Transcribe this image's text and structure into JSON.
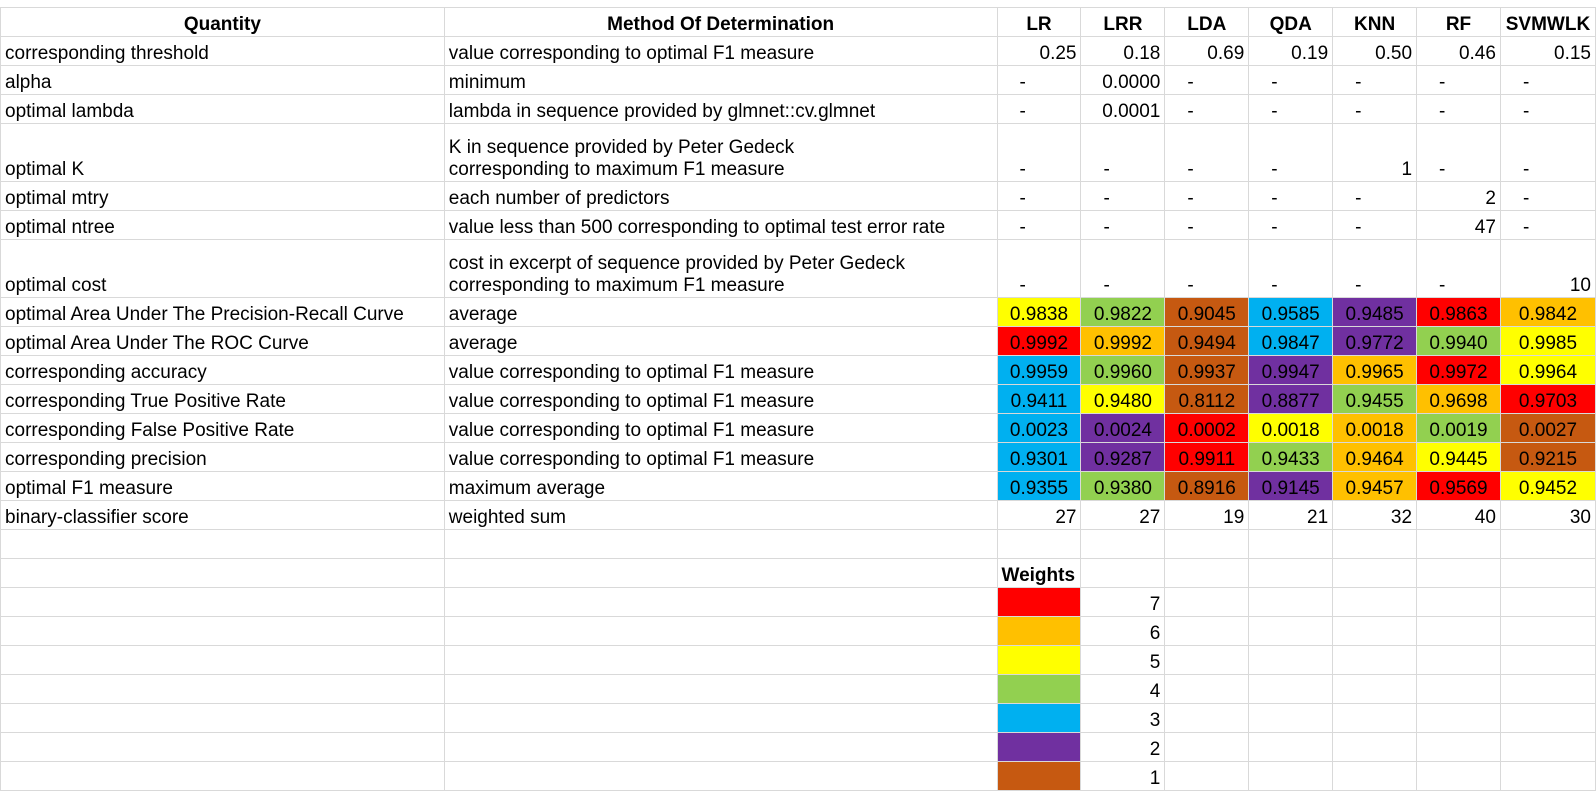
{
  "table": {
    "headers": [
      "Quantity",
      "Method Of Determination",
      "LR",
      "LRR",
      "LDA",
      "QDA",
      "KNN",
      "RF",
      "SVMWLK"
    ],
    "rows": [
      {
        "quantity": "corresponding threshold",
        "method": [
          "value corresponding to optimal F1 measure"
        ],
        "values": [
          "0.25",
          "0.18",
          "0.69",
          "0.19",
          "0.50",
          "0.46",
          "0.15"
        ]
      },
      {
        "quantity": "alpha",
        "method": [
          "minimum"
        ],
        "values": [
          "-",
          "0.0000",
          "-",
          "-",
          "-",
          "-",
          "-"
        ]
      },
      {
        "quantity": "optimal lambda",
        "method": [
          "lambda in sequence provided by glmnet::cv.glmnet"
        ],
        "values": [
          "-",
          "0.0001",
          "-",
          "-",
          "-",
          "-",
          "-"
        ]
      },
      {
        "quantity": "optimal K",
        "method": [
          "K in sequence provided by Peter Gedeck",
          "corresponding to maximum F1 measure"
        ],
        "values": [
          "-",
          "-",
          "-",
          "-",
          "1",
          "-",
          "-"
        ]
      },
      {
        "quantity": "optimal mtry",
        "method": [
          "each number of predictors"
        ],
        "values": [
          "-",
          "-",
          "-",
          "-",
          "-",
          "2",
          "-"
        ]
      },
      {
        "quantity": "optimal ntree",
        "method": [
          "value less than 500 corresponding to optimal test error rate"
        ],
        "values": [
          "-",
          "-",
          "-",
          "-",
          "-",
          "47",
          "-"
        ]
      },
      {
        "quantity": "optimal cost",
        "method": [
          "cost in excerpt of sequence provided by Peter Gedeck",
          "corresponding to maximum F1 measure"
        ],
        "values": [
          "-",
          "-",
          "-",
          "-",
          "-",
          "-",
          "10"
        ]
      },
      {
        "quantity": "optimal Area Under The Precision-Recall Curve",
        "method": [
          "average"
        ],
        "values": [
          "0.9838",
          "0.9822",
          "0.9045",
          "0.9585",
          "0.9485",
          "0.9863",
          "0.9842"
        ],
        "weights": [
          5,
          4,
          1,
          3,
          2,
          7,
          6
        ]
      },
      {
        "quantity": "optimal Area Under The ROC Curve",
        "method": [
          "average"
        ],
        "values": [
          "0.9992",
          "0.9992",
          "0.9494",
          "0.9847",
          "0.9772",
          "0.9940",
          "0.9985"
        ],
        "weights": [
          7,
          6,
          1,
          3,
          2,
          4,
          5
        ]
      },
      {
        "quantity": "corresponding accuracy",
        "method": [
          "value corresponding to optimal F1 measure"
        ],
        "values": [
          "0.9959",
          "0.9960",
          "0.9937",
          "0.9947",
          "0.9965",
          "0.9972",
          "0.9964"
        ],
        "weights": [
          3,
          4,
          1,
          2,
          6,
          7,
          5
        ]
      },
      {
        "quantity": "corresponding True Positive Rate",
        "method": [
          "value corresponding to optimal F1 measure"
        ],
        "values": [
          "0.9411",
          "0.9480",
          "0.8112",
          "0.8877",
          "0.9455",
          "0.9698",
          "0.9703"
        ],
        "weights": [
          3,
          5,
          1,
          2,
          4,
          6,
          7
        ]
      },
      {
        "quantity": "corresponding False Positive Rate",
        "method": [
          "value corresponding to optimal F1 measure"
        ],
        "values": [
          "0.0023",
          "0.0024",
          "0.0002",
          "0.0018",
          "0.0018",
          "0.0019",
          "0.0027"
        ],
        "weights": [
          3,
          2,
          7,
          5,
          6,
          4,
          1
        ]
      },
      {
        "quantity": "corresponding precision",
        "method": [
          "value corresponding to optimal F1 measure"
        ],
        "values": [
          "0.9301",
          "0.9287",
          "0.9911",
          "0.9433",
          "0.9464",
          "0.9445",
          "0.9215"
        ],
        "weights": [
          3,
          2,
          7,
          4,
          6,
          5,
          1
        ]
      },
      {
        "quantity": "optimal F1 measure",
        "method": [
          "maximum average"
        ],
        "values": [
          "0.9355",
          "0.9380",
          "0.8916",
          "0.9145",
          "0.9457",
          "0.9569",
          "0.9452"
        ],
        "weights": [
          3,
          4,
          1,
          2,
          6,
          7,
          5
        ]
      },
      {
        "quantity": "binary-classifier score",
        "method": [
          "weighted sum"
        ],
        "values": [
          "27",
          "27",
          "19",
          "21",
          "32",
          "40",
          "30"
        ]
      }
    ]
  },
  "weights_legend": {
    "title": "Weights",
    "items": [
      {
        "weight": "7",
        "color": "#ff0000"
      },
      {
        "weight": "6",
        "color": "#ffc000"
      },
      {
        "weight": "5",
        "color": "#ffff00"
      },
      {
        "weight": "4",
        "color": "#92d050"
      },
      {
        "weight": "3",
        "color": "#00b0f0"
      },
      {
        "weight": "2",
        "color": "#7030a0"
      },
      {
        "weight": "1",
        "color": "#c65911"
      }
    ]
  }
}
